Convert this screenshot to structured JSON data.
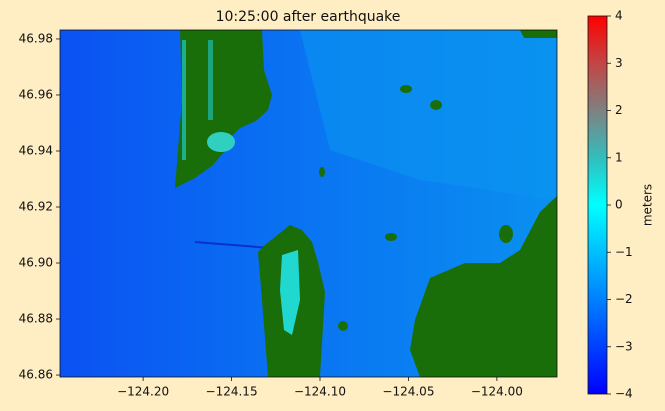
{
  "chart_data": {
    "type": "heatmap",
    "title": "10:25:00 after earthquake",
    "colorbar_label": "meters",
    "xlim": [
      -124.247,
      -123.966
    ],
    "ylim": [
      46.8593,
      46.9832
    ],
    "xticks": [
      {
        "value": -124.2,
        "label": "−124.20"
      },
      {
        "value": -124.15,
        "label": "−124.15"
      },
      {
        "value": -124.1,
        "label": "−124.10"
      },
      {
        "value": -124.05,
        "label": "−124.05"
      },
      {
        "value": -124.0,
        "label": "−124.00"
      }
    ],
    "yticks": [
      {
        "value": 46.86,
        "label": "46.86"
      },
      {
        "value": 46.88,
        "label": "46.88"
      },
      {
        "value": 46.9,
        "label": "46.90"
      },
      {
        "value": 46.92,
        "label": "46.92"
      },
      {
        "value": 46.94,
        "label": "46.94"
      },
      {
        "value": 46.96,
        "label": "46.96"
      },
      {
        "value": 46.98,
        "label": "46.98"
      }
    ],
    "clim": [
      -4,
      4
    ],
    "cticks": [
      {
        "value": -4,
        "label": "−4"
      },
      {
        "value": -3,
        "label": "−3"
      },
      {
        "value": -2,
        "label": "−2"
      },
      {
        "value": -1,
        "label": "−1"
      },
      0,
      1,
      2,
      3,
      4
    ]
  }
}
